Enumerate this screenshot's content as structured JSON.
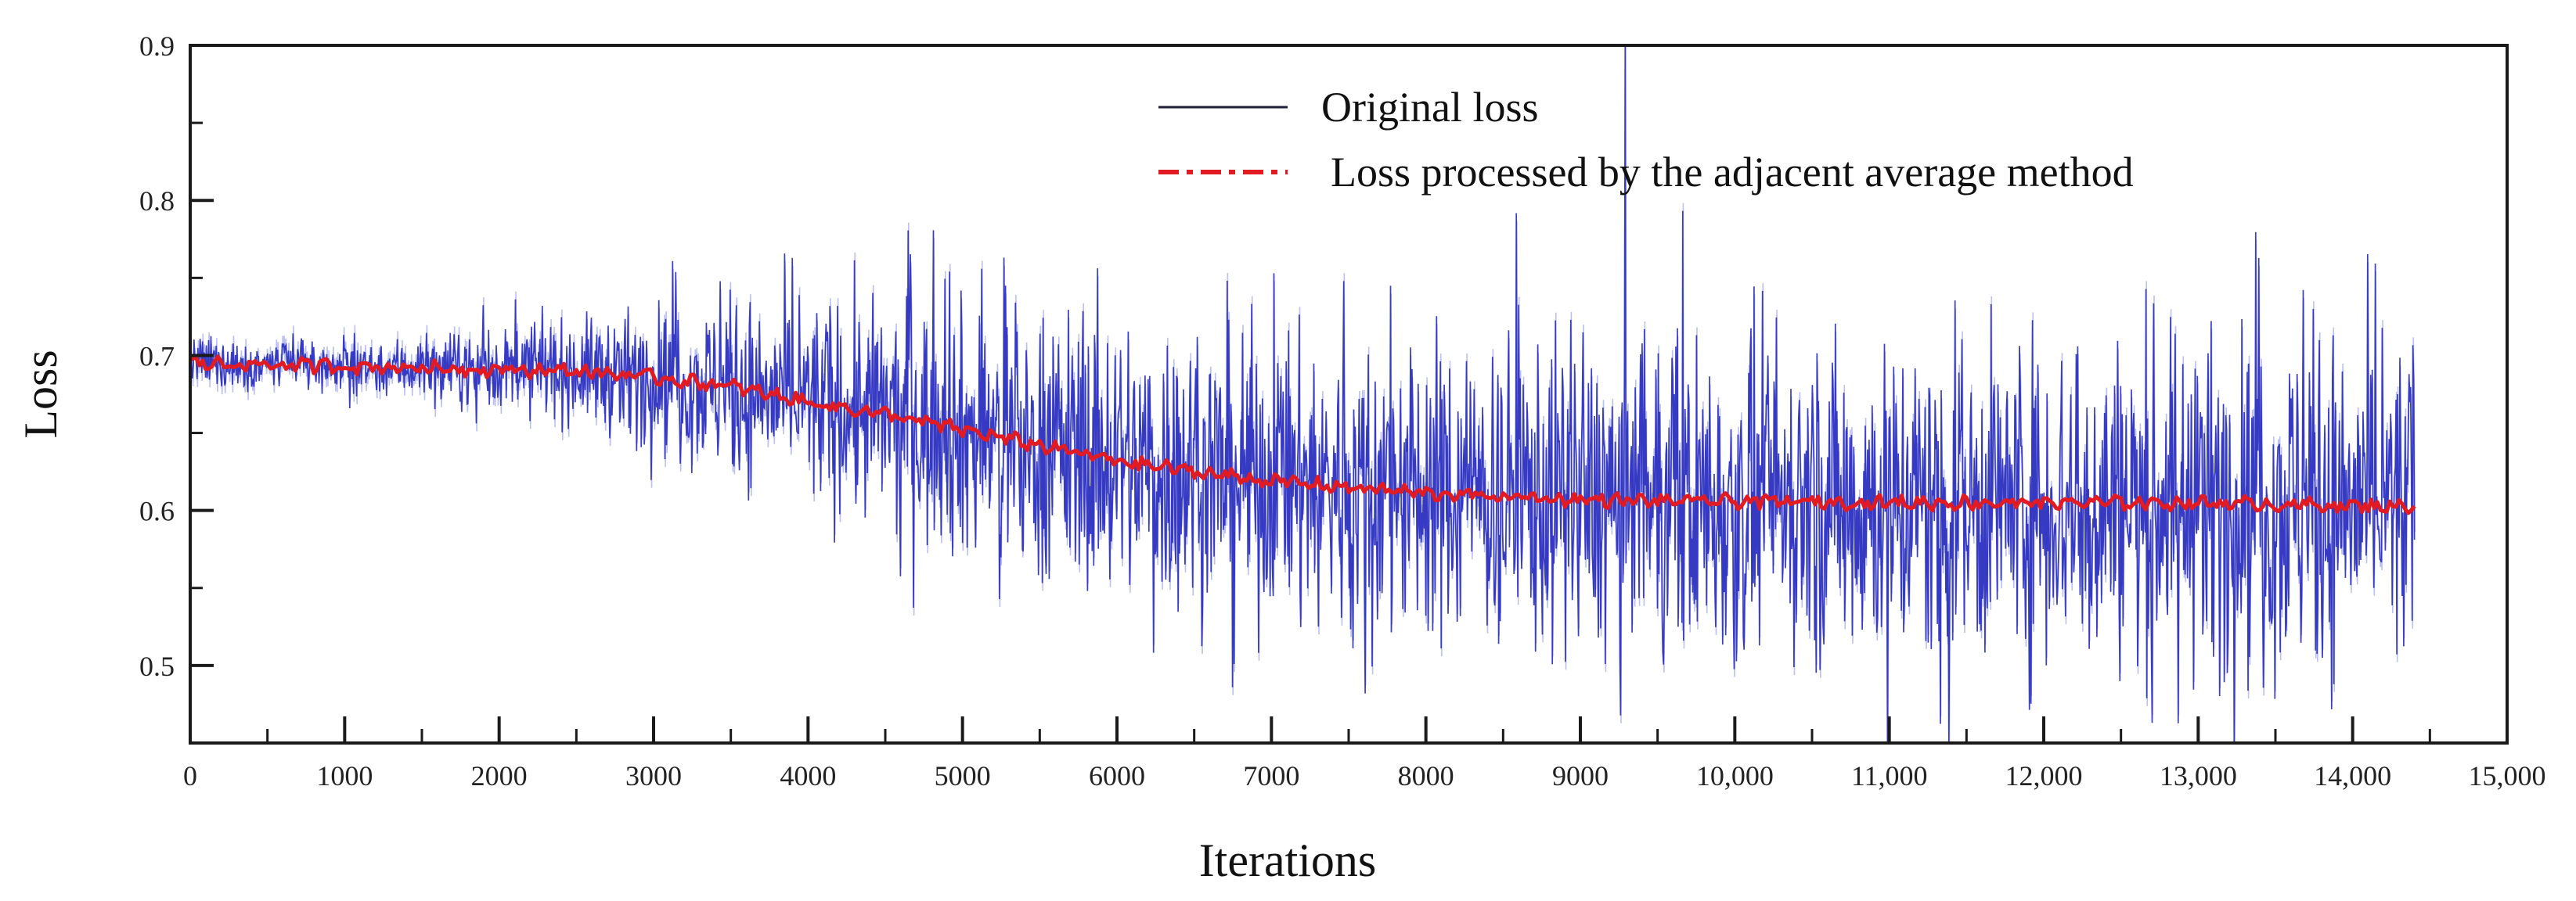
{
  "chart_data": {
    "type": "line",
    "title": "",
    "xlabel": "Iterations",
    "ylabel": "Loss",
    "xlim": [
      0,
      15000
    ],
    "ylim": [
      0.45,
      0.9
    ],
    "x_ticks": [
      0,
      1000,
      2000,
      3000,
      4000,
      5000,
      6000,
      7000,
      8000,
      9000,
      10000,
      11000,
      12000,
      13000,
      14000,
      15000
    ],
    "x_tick_labels": [
      "0",
      "1000",
      "2000",
      "3000",
      "4000",
      "5000",
      "6000",
      "7000",
      "8000",
      "9000",
      "10,000",
      "11,000",
      "12,000",
      "13,000",
      "14,000",
      "15,000"
    ],
    "y_ticks": [
      0.5,
      0.6,
      0.7,
      0.8,
      0.9
    ],
    "y_tick_labels": [
      "0.5",
      "0.6",
      "0.7",
      "0.8",
      "0.9"
    ],
    "legend_position": "top-center",
    "series": [
      {
        "name": "Original loss",
        "style": "solid",
        "color": "#2a2fbf",
        "x_range": [
          0,
          14400
        ],
        "trend_x": [
          0,
          1000,
          2000,
          2500,
          3000,
          4000,
          5000,
          6000,
          7000,
          8000,
          9000,
          10000,
          11000,
          12000,
          13000,
          14000,
          14400
        ],
        "trend_y": [
          0.695,
          0.693,
          0.691,
          0.69,
          0.686,
          0.67,
          0.65,
          0.632,
          0.619,
          0.611,
          0.607,
          0.606,
          0.605,
          0.605,
          0.605,
          0.603,
          0.603
        ],
        "noise_x": [
          0,
          1000,
          2000,
          2500,
          3000,
          4000,
          5000,
          6000,
          7000,
          8000,
          9000,
          10000,
          11000,
          12000,
          13000,
          14000,
          14400
        ],
        "noise_amplitude": [
          0.008,
          0.008,
          0.012,
          0.016,
          0.022,
          0.032,
          0.04,
          0.045,
          0.046,
          0.048,
          0.05,
          0.05,
          0.051,
          0.052,
          0.053,
          0.053,
          0.053
        ]
      },
      {
        "name": "Loss processed by the  adjacent average method",
        "style": "dash-dot",
        "color": "#e21b23",
        "x": [
          0,
          1000,
          2000,
          2500,
          3000,
          3500,
          4000,
          4500,
          5000,
          5500,
          6000,
          6500,
          7000,
          7500,
          8000,
          8500,
          9000,
          9500,
          10000,
          11000,
          12000,
          13000,
          14000,
          14400
        ],
        "y": [
          0.695,
          0.693,
          0.691,
          0.69,
          0.686,
          0.68,
          0.67,
          0.662,
          0.652,
          0.642,
          0.632,
          0.625,
          0.619,
          0.615,
          0.611,
          0.609,
          0.607,
          0.606,
          0.606,
          0.605,
          0.605,
          0.605,
          0.603,
          0.603
        ]
      }
    ]
  }
}
